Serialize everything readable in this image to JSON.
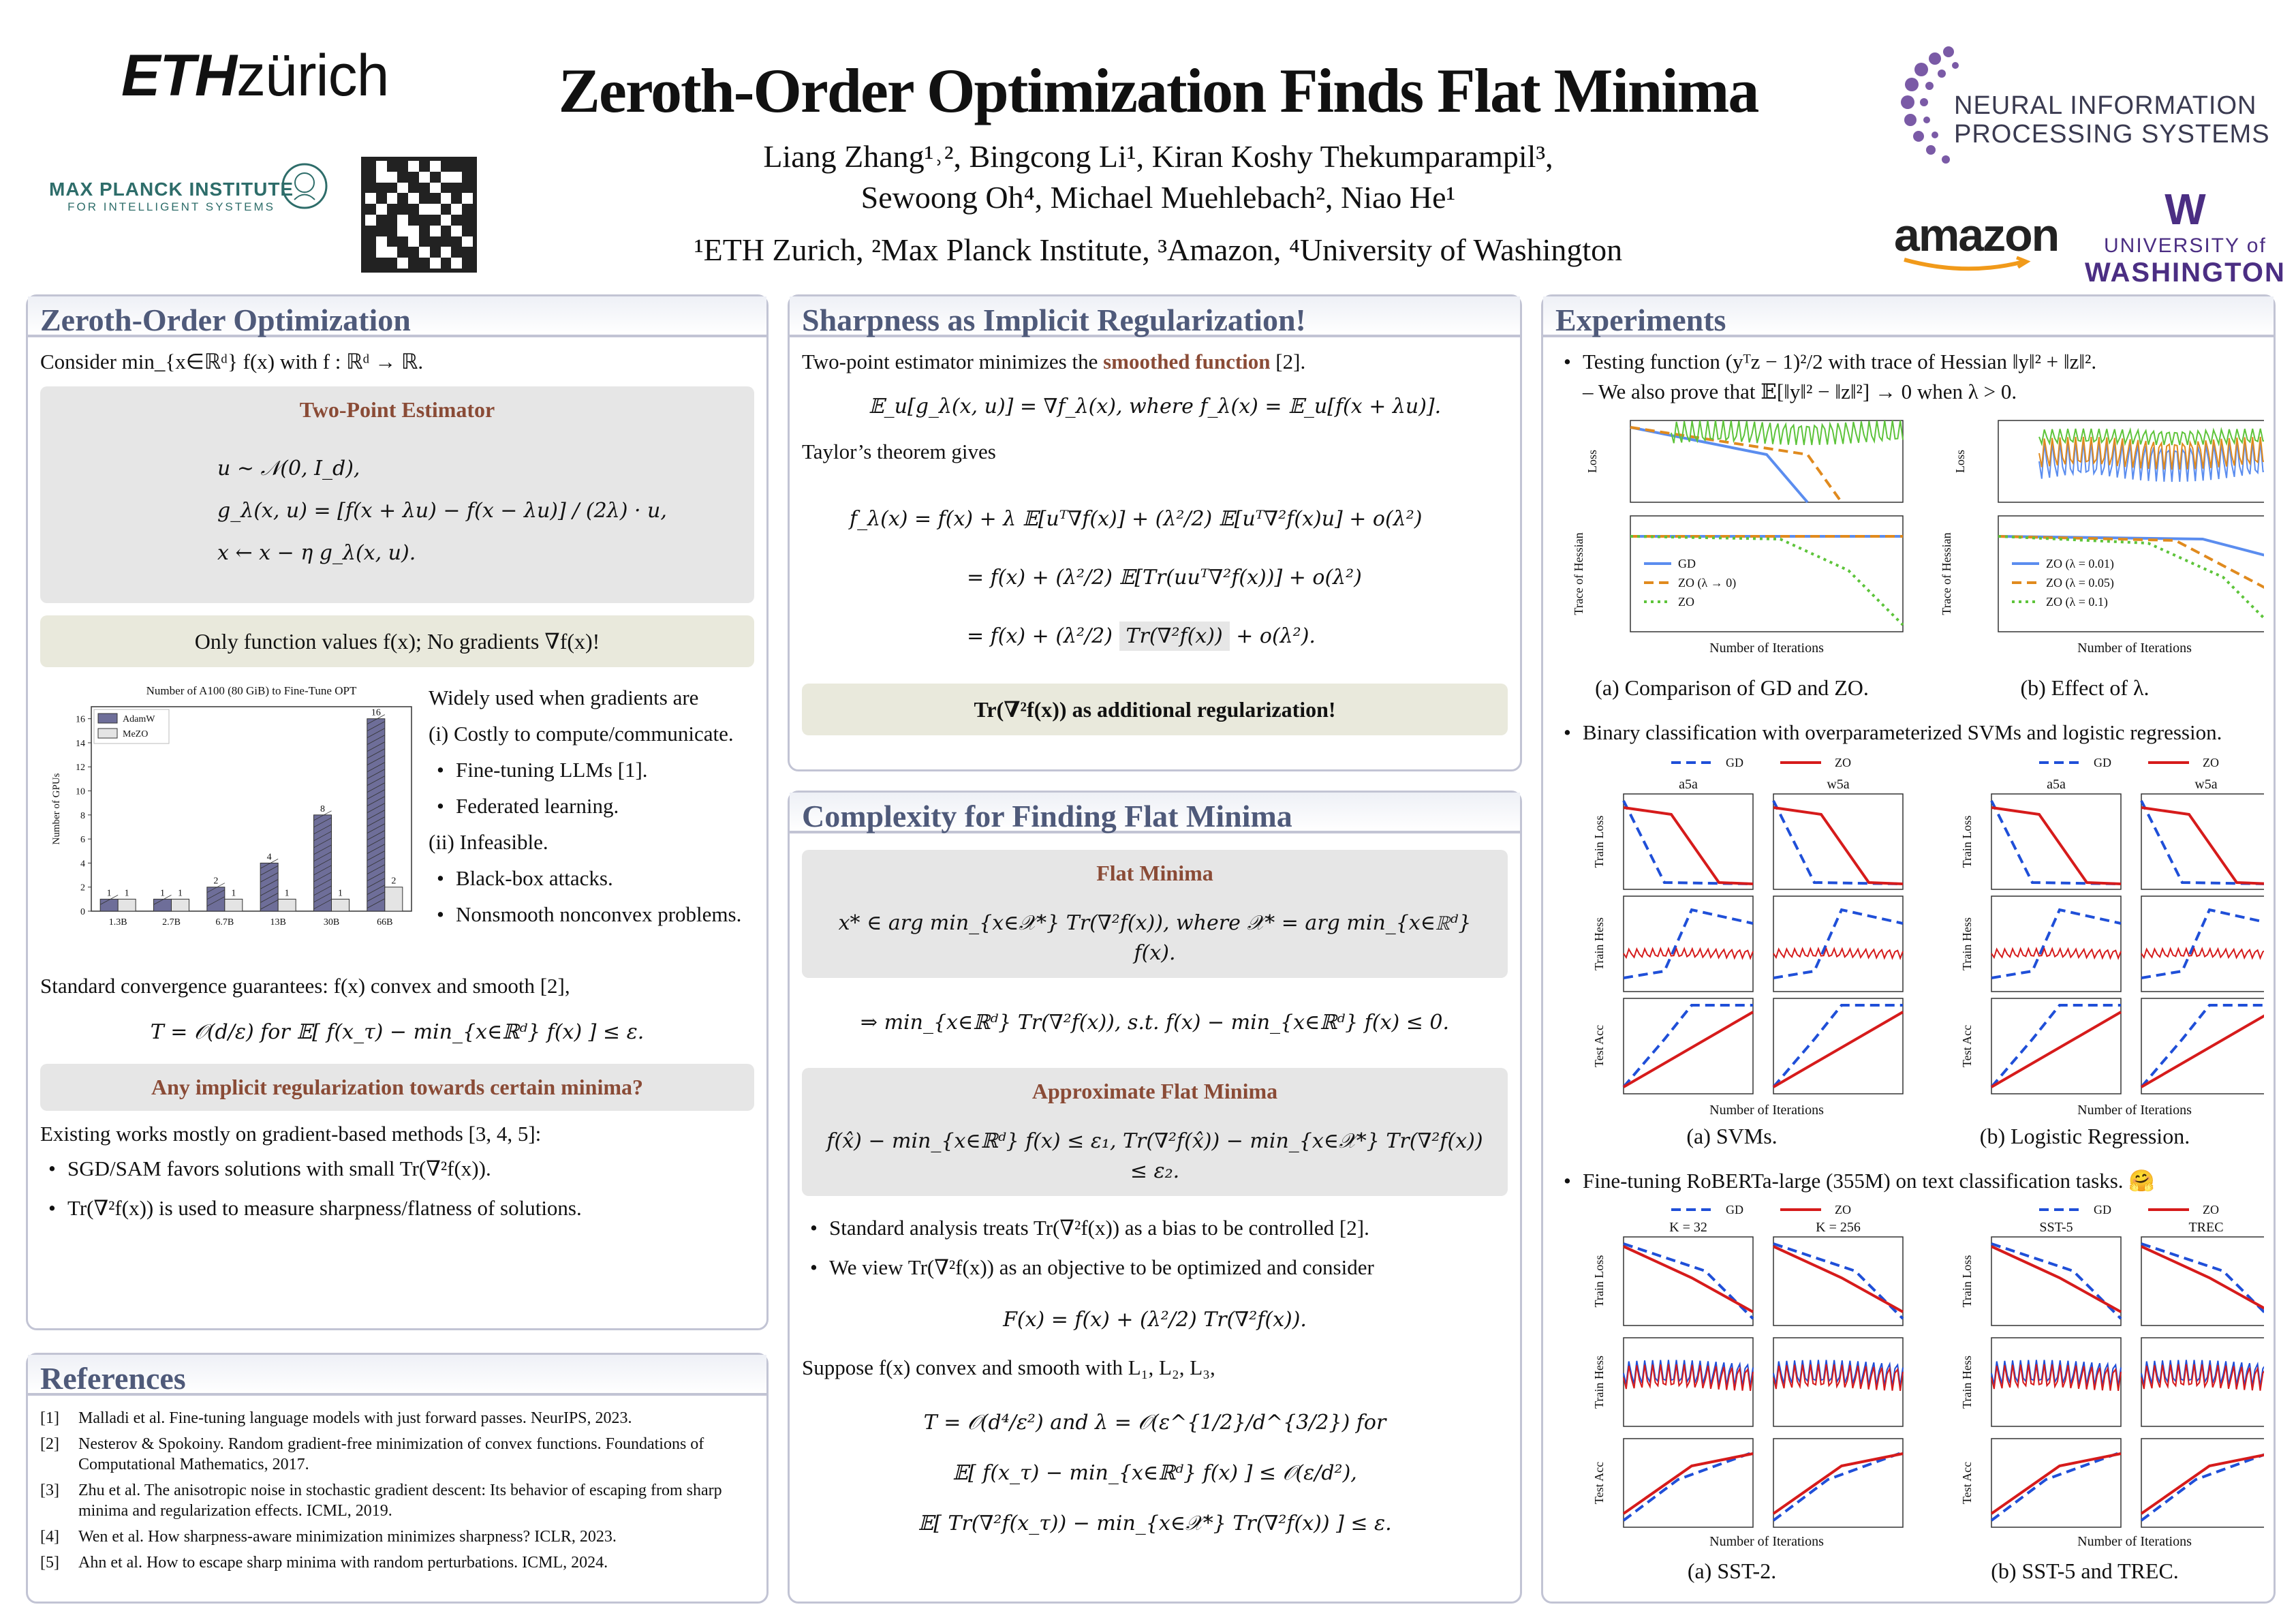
{
  "header": {
    "eth_logo_bold": "ETH",
    "eth_logo_light": "zürich",
    "mpi_logo": "MAX PLANCK INSTITUTE",
    "mpi_sub": "FOR INTELLIGENT SYSTEMS",
    "title": "Zeroth-Order Optimization Finds Flat Minima",
    "authors_line1": "Liang Zhang¹˒², Bingcong Li¹, Kiran Koshy Thekumparampil³,",
    "authors_line2": "Sewoong Oh⁴, Michael Muehlebach², Niao He¹",
    "affiliations": "¹ETH Zurich, ²Max Planck Institute, ³Amazon, ⁴University of Washington",
    "neurips_line1": "NEURAL INFORMATION",
    "neurips_line2": "PROCESSING SYSTEMS",
    "amazon_logo": "amazon",
    "uw_w": "W",
    "uw_line1": "UNIVERSITY of",
    "uw_line2": "WASHINGTON"
  },
  "zo": {
    "title": "Zeroth-Order Optimization",
    "intro": "Consider min_{x∈ℝᵈ} f(x) with f : ℝᵈ → ℝ.",
    "two_point_title": "Two-Point Estimator",
    "eq1": "u ∼ 𝒩(0, I_d),",
    "eq2": "g_λ(x, u) = [f(x + λu) − f(x − λu)] / (2λ) · u,",
    "eq3": "x ← x − η g_λ(x, u).",
    "only_values": "Only function values f(x); No gradients ∇f(x)!",
    "chart_title": "Number of A100 (80 GiB) to Fine-Tune OPT",
    "widely_used": "Widely used when gradients are",
    "costly": "(i) Costly to compute/communicate.",
    "llm": "Fine-tuning LLMs [1].",
    "fed": "Federated learning.",
    "infeasible": "(ii) Infeasible.",
    "blackbox": "Black-box attacks.",
    "nonsmooth": "Nonsmooth nonconvex problems.",
    "std_conv": "Standard convergence guarantees: f(x) convex and smooth [2],",
    "conv_eq": "T = 𝒪(d/ε) for 𝔼[ f(x_τ) − min_{x∈ℝᵈ} f(x) ] ≤ ε.",
    "question": "Any implicit regularization towards certain minima?",
    "existing": "Existing works mostly on gradient-based methods [3, 4, 5]:",
    "sgd": "SGD/SAM favors solutions with small Tr(∇²f(x)).",
    "tr_measure": "Tr(∇²f(x)) is used to measure sharpness/flatness of solutions."
  },
  "refs": {
    "title": "References",
    "items": [
      {
        "n": "[1]",
        "t": "Malladi et al. Fine-tuning language models with just forward passes. NeurIPS, 2023."
      },
      {
        "n": "[2]",
        "t": "Nesterov & Spokoiny. Random gradient-free minimization of convex functions. Foundations of Computational Mathematics, 2017."
      },
      {
        "n": "[3]",
        "t": "Zhu et al. The anisotropic noise in stochastic gradient descent: Its behavior of escaping from sharp minima and regularization effects. ICML, 2019."
      },
      {
        "n": "[4]",
        "t": "Wen et al. How sharpness-aware minimization minimizes sharpness? ICLR, 2023."
      },
      {
        "n": "[5]",
        "t": "Ahn et al. How to escape sharp minima with random perturbations. ICML, 2024."
      }
    ]
  },
  "sharp": {
    "title": "Sharpness as Implicit Regularization!",
    "intro_a": "Two-point estimator minimizes the ",
    "intro_b": "smoothed function",
    "intro_c": " [2].",
    "eq_smooth": "𝔼_u[g_λ(x, u)] = ∇f_λ(x), where f_λ(x) = 𝔼_u[f(x + λu)].",
    "taylor": "Taylor’s theorem gives",
    "t1": "f_λ(x) = f(x) + λ 𝔼[uᵀ∇f(x)] + (λ²/2) 𝔼[uᵀ∇²f(x)u] + o(λ²)",
    "t2": "= f(x) + (λ²/2) 𝔼[Tr(uuᵀ∇²f(x))] + o(λ²)",
    "t3a": "= f(x) + (λ²/2)",
    "t3b": "Tr(∇²f(x))",
    "t3c": "+ o(λ²).",
    "reg": "Tr(∇²f(x)) as additional regularization!"
  },
  "complex": {
    "title": "Complexity for Finding Flat Minima",
    "flat_title": "Flat Minima",
    "flat_eq": "x* ∈ arg min_{x∈𝒳*} Tr(∇²f(x)), where 𝒳* = arg min_{x∈ℝᵈ} f(x).",
    "implies": "⇒   min_{x∈ℝᵈ} Tr(∇²f(x)), s.t. f(x) − min_{x∈ℝᵈ} f(x) ≤ 0.",
    "approx_title": "Approximate Flat Minima",
    "approx_eq": "f(x̂) − min_{x∈ℝᵈ} f(x) ≤ ε₁,   Tr(∇²f(x̂)) − min_{x∈𝒳*} Tr(∇²f(x)) ≤ ε₂.",
    "std_analysis": "Standard analysis treats Tr(∇²f(x)) as a bias to be controlled [2].",
    "we_view": "We view Tr(∇²f(x)) as an objective to be optimized and consider",
    "F_eq": "F(x) = f(x) + (λ²/2) Tr(∇²f(x)).",
    "suppose": "Suppose f(x) convex and smooth with L₁, L₂, L₃,",
    "T_eq": "T = 𝒪(d⁴/ε²) and λ = 𝒪(ε^{1/2}/d^{3/2}) for",
    "E1": "𝔼[ f(x_τ) − min_{x∈ℝᵈ} f(x) ] ≤ 𝒪(ε/d²),",
    "E2": "𝔼[ Tr(∇²f(x_τ)) − min_{x∈𝒳*} Tr(∇²f(x)) ] ≤ ε."
  },
  "exp": {
    "title": "Experiments",
    "b1": "Testing function (yᵀz − 1)²/2 with trace of Hessian ‖y‖² + ‖z‖².",
    "b1sub": "We also prove that 𝔼[‖y‖² − ‖z‖²] → 0 when λ > 0.",
    "capA": "(a) Comparison of GD and ZO.",
    "capB": "(b) Effect of λ.",
    "b2": "Binary classification with overparameterized SVMs and logistic regression.",
    "capSVM": "(a) SVMs.",
    "capLR": "(b) Logistic Regression.",
    "b3": "Fine-tuning RoBERTa-large (355M) on text classification tasks. 🤗",
    "capSST2": "(a) SST-2.",
    "capSST5": "(b) SST-5 and TREC.",
    "xlabel": "Number of Iterations",
    "loss": "Loss",
    "trace": "Trace of Hessian",
    "train_loss": "Train Loss",
    "train_hess": "Train Hess",
    "test_acc": "Test Acc",
    "legA": [
      "GD",
      "ZO (λ → 0)",
      "ZO"
    ],
    "legB": [
      "ZO (λ = 0.01)",
      "ZO (λ = 0.05)",
      "ZO (λ = 0.1)"
    ],
    "gd": "GD",
    "zo": "ZO",
    "a5a": "a5a",
    "w5a": "w5a",
    "k32": "K = 32",
    "k256": "K = 256",
    "sst5": "SST-5",
    "trec": "TREC"
  },
  "colors": {
    "gd": "#1f4fd8",
    "zo": "#d61b1b",
    "blue": "#5b8def",
    "orange": "#e08a1e",
    "green": "#5dc43a",
    "adam": "#6e6e99",
    "mezo": "#e4e4e4",
    "accent": "#8a4b36",
    "header": "#4f5a7a"
  },
  "chart_data": [
    {
      "type": "bar",
      "title": "Number of A100 (80 GiB) to Fine-Tune OPT",
      "ylabel": "Number of GPUs",
      "categories": [
        "1.3B",
        "2.7B",
        "6.7B",
        "13B",
        "30B",
        "66B"
      ],
      "series": [
        {
          "name": "AdamW",
          "values": [
            1,
            1,
            2,
            4,
            8,
            16
          ]
        },
        {
          "name": "MeZO",
          "values": [
            1,
            1,
            1,
            1,
            1,
            2
          ]
        }
      ],
      "ylim": [
        0,
        17
      ],
      "yticks": [
        0,
        2,
        4,
        6,
        8,
        10,
        12,
        14,
        16
      ],
      "legend": "top-left"
    }
  ]
}
